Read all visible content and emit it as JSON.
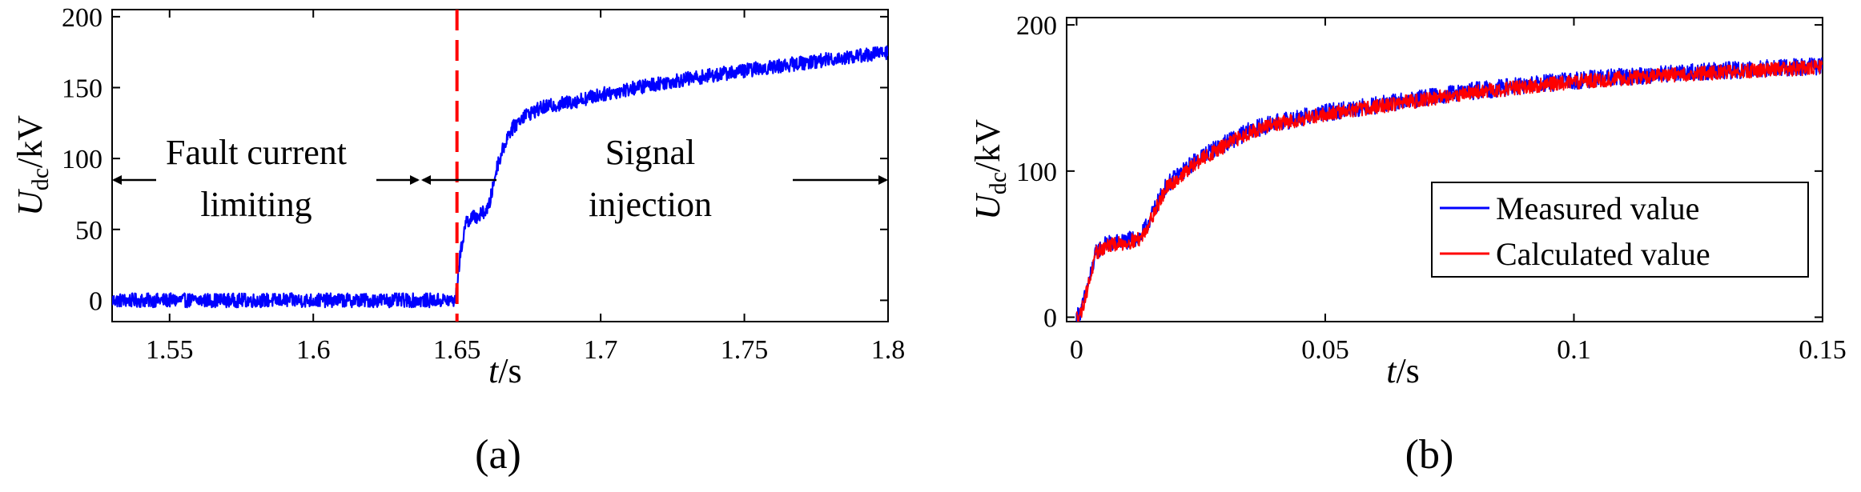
{
  "chart_data": [
    {
      "panel": "a",
      "type": "line",
      "panel_label": "(a)",
      "xlabel": "t/s",
      "ylabel": "U_dc/kV",
      "xlim": [
        1.53,
        1.8
      ],
      "ylim": [
        -15,
        205
      ],
      "xticks": [
        1.55,
        1.6,
        1.65,
        1.7,
        1.75,
        1.8
      ],
      "xtick_labels": [
        "1.55",
        "1.6",
        "1.65",
        "1.7",
        "1.75",
        "1.8"
      ],
      "yticks": [
        0,
        50,
        100,
        150,
        200
      ],
      "ytick_labels": [
        "0",
        "50",
        "100",
        "150",
        "200"
      ],
      "vline": {
        "x": 1.65,
        "color": "#ff0000",
        "style": "dashed"
      },
      "annotations": [
        {
          "line1": "Fault current",
          "line2": "limiting"
        },
        {
          "line1": "Signal",
          "line2": "injection"
        }
      ],
      "series": [
        {
          "name": "U_dc",
          "color": "#0000ff",
          "noise_kv": 5,
          "x": [
            1.53,
            1.6495,
            1.651,
            1.653,
            1.655,
            1.658,
            1.661,
            1.664,
            1.668,
            1.673,
            1.68,
            1.69,
            1.7,
            1.72,
            1.75,
            1.78,
            1.8
          ],
          "y": [
            0,
            0,
            30,
            55,
            58,
            60,
            65,
            95,
            118,
            130,
            136,
            140,
            145,
            153,
            162,
            170,
            175
          ]
        }
      ]
    },
    {
      "panel": "b",
      "type": "line",
      "panel_label": "(b)",
      "xlabel": "t/s",
      "ylabel": "U_dc/kV",
      "xlim": [
        -0.002,
        0.15
      ],
      "ylim": [
        -3,
        205
      ],
      "xticks": [
        0,
        0.05,
        0.1,
        0.15
      ],
      "xtick_labels": [
        "0",
        "0.05",
        "0.1",
        "0.15"
      ],
      "yticks": [
        0,
        100,
        200
      ],
      "ytick_labels": [
        "0",
        "100",
        "200"
      ],
      "legend": {
        "position": "lower-right",
        "entries": [
          "Measured value",
          "Calculated value"
        ]
      },
      "series": [
        {
          "name": "Measured value",
          "color": "#0000ff",
          "noise_kv": 6,
          "x": [
            0,
            0.001,
            0.004,
            0.006,
            0.01,
            0.013,
            0.018,
            0.025,
            0.035,
            0.04,
            0.05,
            0.06,
            0.08,
            0.1,
            0.12,
            0.15
          ],
          "y": [
            0,
            5,
            45,
            50,
            52,
            55,
            90,
            110,
            128,
            133,
            140,
            145,
            155,
            162,
            167,
            172
          ]
        },
        {
          "name": "Calculated value",
          "color": "#ff0000",
          "noise_kv": 5,
          "x": [
            0,
            0.001,
            0.004,
            0.006,
            0.01,
            0.013,
            0.018,
            0.025,
            0.035,
            0.04,
            0.05,
            0.06,
            0.08,
            0.1,
            0.12,
            0.15
          ],
          "y": [
            0,
            4,
            44,
            49,
            51,
            54,
            88,
            108,
            127,
            132,
            139,
            144,
            154,
            161,
            166,
            171
          ]
        }
      ]
    }
  ]
}
